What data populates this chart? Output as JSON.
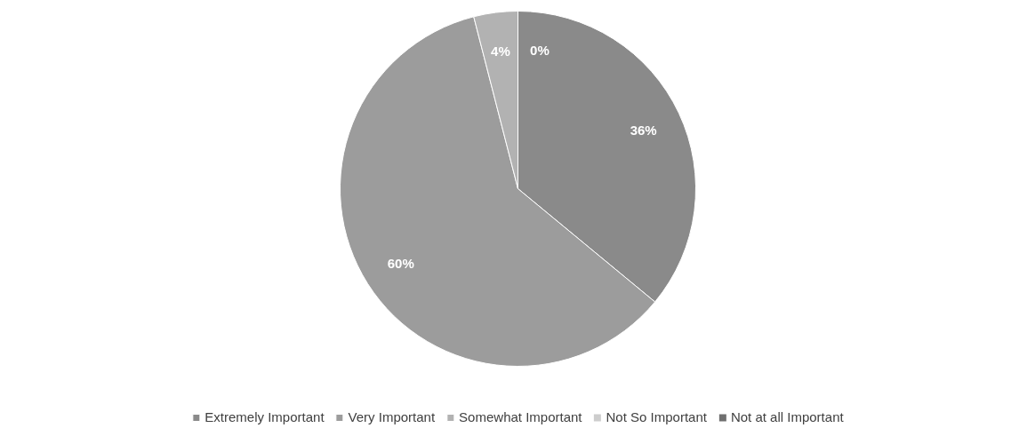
{
  "chart_data": {
    "type": "pie",
    "categories": [
      "Extremely Important",
      "Very Important",
      "Somewhat Important",
      "Not So Important",
      "Not at all Important"
    ],
    "values": [
      36,
      60,
      4,
      0,
      0
    ],
    "colors": [
      "#8a8a8a",
      "#9c9c9c",
      "#b2b2b2",
      "#cdcdcd",
      "#6f6f6f"
    ],
    "value_labels": [
      "36%",
      "60%",
      "4%",
      "0%",
      null
    ],
    "legend": "bottom"
  }
}
